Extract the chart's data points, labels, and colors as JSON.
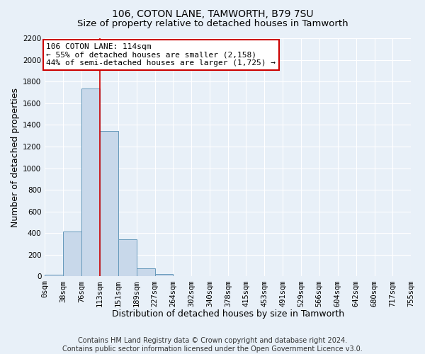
{
  "title": "106, COTON LANE, TAMWORTH, B79 7SU",
  "subtitle": "Size of property relative to detached houses in Tamworth",
  "xlabel": "Distribution of detached houses by size in Tamworth",
  "ylabel": "Number of detached properties",
  "bar_edges": [
    0,
    38,
    76,
    113,
    151,
    189,
    227,
    264,
    302,
    340,
    378,
    415,
    453,
    491,
    529,
    566,
    604,
    642,
    680,
    717,
    755
  ],
  "bar_heights": [
    15,
    415,
    1735,
    1345,
    340,
    75,
    25,
    5,
    0,
    0,
    0,
    0,
    0,
    0,
    0,
    0,
    0,
    0,
    0,
    0
  ],
  "bar_color": "#c8d8ea",
  "bar_edge_color": "#6699bb",
  "property_size": 114,
  "vline_color": "#cc0000",
  "annotation_line1": "106 COTON LANE: 114sqm",
  "annotation_line2": "← 55% of detached houses are smaller (2,158)",
  "annotation_line3": "44% of semi-detached houses are larger (1,725) →",
  "annotation_box_color": "#ffffff",
  "annotation_box_edge_color": "#cc0000",
  "ylim": [
    0,
    2200
  ],
  "yticks": [
    0,
    200,
    400,
    600,
    800,
    1000,
    1200,
    1400,
    1600,
    1800,
    2000,
    2200
  ],
  "xtick_labels": [
    "0sqm",
    "38sqm",
    "76sqm",
    "113sqm",
    "151sqm",
    "189sqm",
    "227sqm",
    "264sqm",
    "302sqm",
    "340sqm",
    "378sqm",
    "415sqm",
    "453sqm",
    "491sqm",
    "529sqm",
    "566sqm",
    "604sqm",
    "642sqm",
    "680sqm",
    "717sqm",
    "755sqm"
  ],
  "footer_text": "Contains HM Land Registry data © Crown copyright and database right 2024.\nContains public sector information licensed under the Open Government Licence v3.0.",
  "bg_color": "#e8f0f8",
  "title_fontsize": 10,
  "subtitle_fontsize": 9.5,
  "axis_label_fontsize": 9,
  "tick_fontsize": 7.5,
  "annotation_fontsize": 8,
  "footer_fontsize": 7
}
